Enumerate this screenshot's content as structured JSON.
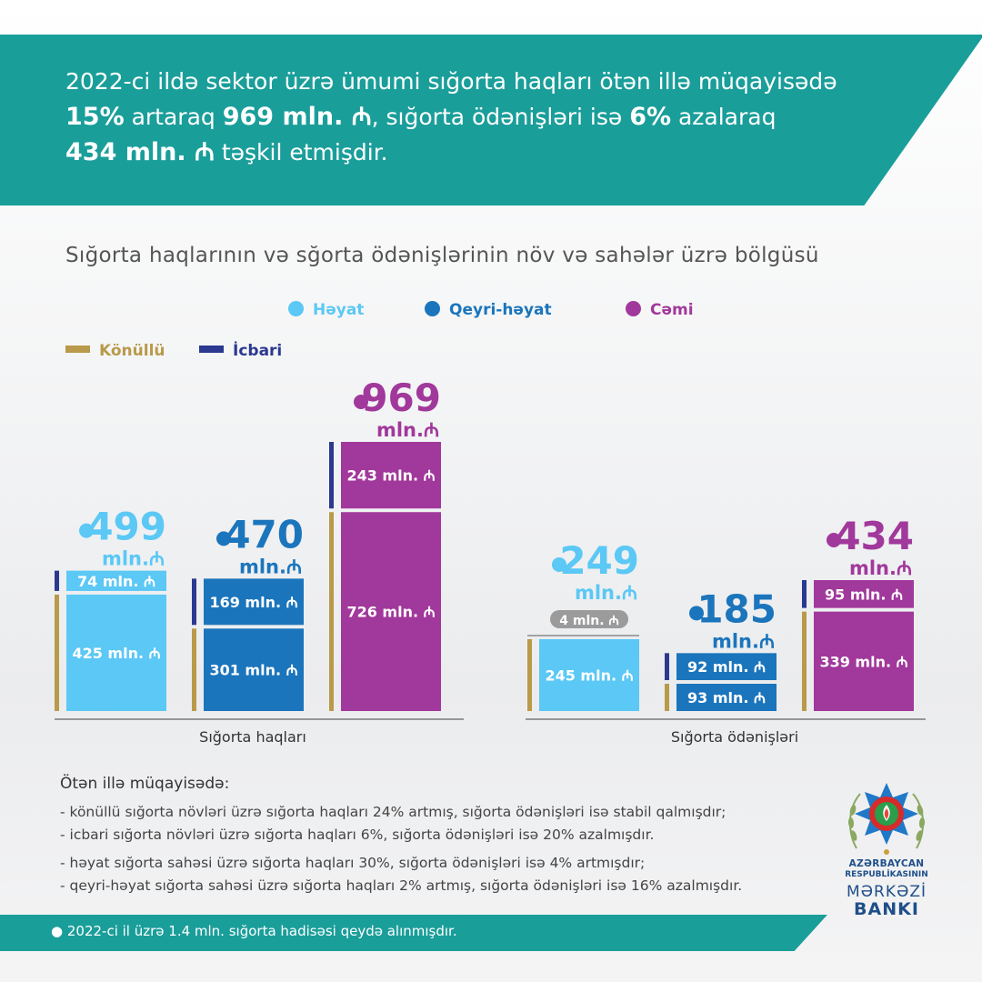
{
  "header": {
    "line1": "2022-ci ildə sektor üzrə ümumi sığorta haqları ötən illə müqayisədə",
    "line2_b1": "15%",
    "line2_t1": " artaraq ",
    "line2_b2": "969 mln. ₼",
    "line2_t2": ", sığorta ödənişləri isə ",
    "line2_b3": "6%",
    "line2_t3": " azalaraq",
    "line3_b1": "434 mln. ₼",
    "line3_t1": " təşkil etmişdir."
  },
  "colors": {
    "teal": "#1a9e9a",
    "heyat": "#5bc8f5",
    "qeyri_heyat": "#1b75bc",
    "cemi": "#a1389b",
    "konullu": "#b99a4a",
    "icbari": "#2b3990",
    "grey_label": "#9b9b9b"
  },
  "chart_data": {
    "type": "bar",
    "title": "Sığorta haqlarının və sğorta ödənişlərinin növ və sahələr üzrə bölgüsü",
    "legend": {
      "types": [
        "Həyat",
        "Qeyri-həyat",
        "Cəmi"
      ],
      "categories": [
        "Könüllü",
        "İcbari"
      ]
    },
    "unit_label": "mln.₼",
    "segment_unit": "mln. ₼",
    "groups": [
      {
        "name": "Sığorta haqları",
        "bars": [
          {
            "type": "Həyat",
            "total": 499,
            "konullu": 425,
            "icbari": 74
          },
          {
            "type": "Qeyri-həyat",
            "total": 470,
            "konullu": 301,
            "icbari": 169
          },
          {
            "type": "Cəmi",
            "total": 969,
            "konullu": 726,
            "icbari": 243
          }
        ]
      },
      {
        "name": "Sığorta ödənişləri",
        "bars": [
          {
            "type": "Həyat",
            "total": 249,
            "konullu": 245,
            "icbari": 4
          },
          {
            "type": "Qeyri-həyat",
            "total": 185,
            "konullu": 93,
            "icbari": 92
          },
          {
            "type": "Cəmi",
            "total": 434,
            "konullu": 339,
            "icbari": 95
          }
        ]
      }
    ]
  },
  "notes": {
    "title": "Ötən illə müqayisədə:",
    "items": [
      "- könüllü sığorta növləri üzrə sığorta haqları 24% artmış, sığorta ödənişləri isə stabil qalmışdır;",
      "- icbari sığorta növləri üzrə sığorta haqları 6%, sığorta ödənişləri isə 20% azalmışdır.",
      "- həyat sığorta sahəsi üzrə sığorta haqları 30%, sığorta ödənişləri isə 4% artmışdır;",
      "- qeyri-həyat sığorta sahəsi üzrə sığorta haqları 2% artmış, sığorta ödənişləri isə 16% azalmışdır."
    ]
  },
  "footer": {
    "text": "● 2022-ci il üzrə 1.4 mln. sığorta hadisəsi qeydə alınmışdır."
  },
  "bank": {
    "line1": "AZƏRBAYCAN",
    "line2": "RESPUBLİKASININ",
    "line3": "MƏRKƏZİ",
    "line4": "BANKI"
  }
}
